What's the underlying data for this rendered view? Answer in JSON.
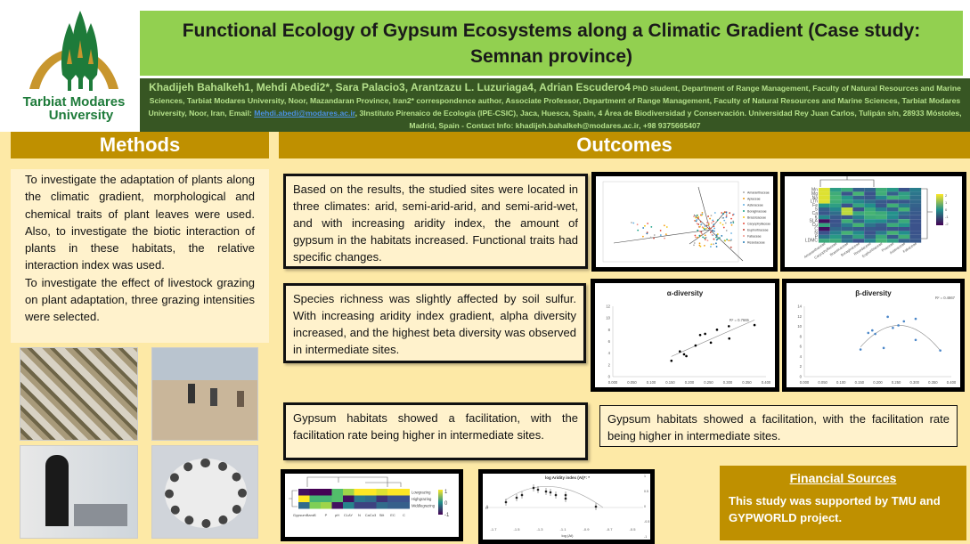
{
  "logo": {
    "line1": "Tarbiat Modares",
    "line2": "University"
  },
  "title": "Functional Ecology of Gypsum Ecosystems along a Climatic Gradient (Case study: Semnan province)",
  "authors": {
    "names": "Khadijeh Bahalkeh1, Mehdi Abedi2*, Sara Palacio3, Arantzazu L. Luzuriaga4, Adrian Escudero4",
    "affil_1": " PhD student, Department of Range Management, Faculty of Natural Resources and Marine Sciences, Tarbiat Modares University, Noor, Mazandaran Province, Iran2* correspondence author, Associate Professor, Department of Range Management,  Faculty of Natural Resources and Marine Sciences, Tarbiat Modares University, Noor, Iran, Email: ",
    "email": "Mehdi.abedi@modares.ac.ir",
    "affil_2": ", 3Instituto Pirenaico de Ecología (IPE-CSIC), Jaca, Huesca, Spain, 4 Área de Biodiversidad y Conservación. Universidad Rey Juan Carlos, Tulipán s/n, 28933 Móstoles, Madrid, Spain - Contact Info: khadijeh.bahalkeh@modares.ac.ir, +98 9375665407"
  },
  "methods": {
    "heading": "Methods",
    "text_1": "To investigate the adaptation of plants along the climatic gradient, morphological and chemical traits of plant leaves were used. Also, to investigate the biotic interaction of plants in these habitats, the relative interaction index was used.",
    "text_2": "To investigate the effect of livestock grazing on plant adaptation, three grazing intensities were selected."
  },
  "outcomes": {
    "heading": "Outcomes",
    "box_1": "Based on the results, the studied sites were located in three climates: arid, semi-arid-arid, and semi-arid-wet, and with increasing aridity index, the amount of gypsum in the habitats increased. Functional traits had specific changes.",
    "box_2": "Species richness was slightly affected by soil sulfur. With increasing aridity index gradient, alpha diversity increased, and the highest beta diversity was observed in intermediate sites.",
    "box_3": "Gypsum habitats showed a facilitation, with the facilitation rate being higher in intermediate sites.",
    "box_4": "Gypsum habitats showed a facilitation, with the facilitation rate being higher in intermediate sites."
  },
  "financial": {
    "heading": "Financial Sources",
    "text": "This study was supported by TMU and GYPWORLD project."
  },
  "figures": {
    "heatmap_top_rows": [
      "Mn",
      "Mg",
      "Na",
      "LTh",
      "Fe",
      "S",
      "Ca",
      "K",
      "SLA",
      "Cu",
      "C",
      "N",
      "P",
      "LDMC"
    ],
    "heatmap_top_cols": [
      "Amaranthaceae",
      "Caryophyllaceae",
      "Brassicaceae",
      "Boraginaceae",
      "Resedaceae",
      "Euphorbiaceae",
      "Poaceae",
      "Asteraceae",
      "Fabaceae"
    ],
    "heatmap_top_scale": [
      "2",
      "1",
      "0",
      "-1",
      "-2"
    ],
    "heatmap_bottom_rows": [
      "Lowgrazing",
      "Highgrazing",
      "Middlegrazing"
    ],
    "heatmap_bottom_cols": [
      "GypsumBand",
      "S",
      "P",
      "pH",
      "CLAY",
      "N",
      "CaCo3",
      "Silt",
      "EC",
      "C"
    ],
    "heatmap_bottom_scale": [
      "1",
      "0",
      "-1"
    ],
    "rii_title": "log Aridity index (AI)*: *",
    "rii_xlabel": "log (AI)",
    "rii_xticks": [
      "-1.7",
      "-1.5",
      "-1.3",
      "-1.1",
      "-0.9",
      "-0.7",
      "-0.5"
    ],
    "rii_yticks": [
      "1",
      "0.5",
      "0",
      "-0.5",
      "-1"
    ],
    "pca_legend": [
      "Amaranthaceae",
      "Apiaceae",
      "Asteraceae",
      "Boraginaceae",
      "Brassicaceae",
      "Caryophyllaceae",
      "Euphorbiaceae",
      "Fabaceae",
      "Resedaceae"
    ]
  },
  "chart_data": [
    {
      "type": "scatter",
      "title": "α-diversity",
      "x_ticks": [
        "0.000",
        "0.050",
        "0.100",
        "0.150",
        "0.200",
        "0.250",
        "0.300",
        "0.350",
        "0.400"
      ],
      "y_ticks": [
        "0",
        "2",
        "4",
        "6",
        "8",
        "10",
        "12"
      ],
      "xlim": [
        0,
        0.4
      ],
      "ylim": [
        0,
        12
      ],
      "trendline": "linear",
      "r2_label": "R² = 0.7665",
      "color": "#000000",
      "points": [
        [
          0.153,
          2.7
        ],
        [
          0.175,
          4.3
        ],
        [
          0.186,
          3.8
        ],
        [
          0.192,
          3.5
        ],
        [
          0.216,
          5.3
        ],
        [
          0.228,
          7.1
        ],
        [
          0.241,
          7.3
        ],
        [
          0.256,
          5.8
        ],
        [
          0.272,
          8.0
        ],
        [
          0.303,
          8.6
        ],
        [
          0.304,
          6.5
        ],
        [
          0.37,
          8.8
        ]
      ]
    },
    {
      "type": "scatter",
      "title": "β-diversity",
      "x_ticks": [
        "0.000",
        "0.050",
        "0.100",
        "0.150",
        "0.200",
        "0.250",
        "0.300",
        "0.350",
        "0.400"
      ],
      "y_ticks": [
        "0",
        "2",
        "4",
        "6",
        "8",
        "10",
        "12",
        "14"
      ],
      "xlim": [
        0,
        0.4
      ],
      "ylim": [
        0,
        14
      ],
      "trendline": "quadratic",
      "r2_label": "R² = 0.4867",
      "color": "#4a86c8",
      "points": [
        [
          0.153,
          5.4
        ],
        [
          0.174,
          8.7
        ],
        [
          0.185,
          9.2
        ],
        [
          0.193,
          8.5
        ],
        [
          0.216,
          5.7
        ],
        [
          0.227,
          11.9
        ],
        [
          0.241,
          9.7
        ],
        [
          0.256,
          10.2
        ],
        [
          0.271,
          11.0
        ],
        [
          0.303,
          11.5
        ],
        [
          0.303,
          7.3
        ],
        [
          0.37,
          5.2
        ]
      ]
    }
  ]
}
